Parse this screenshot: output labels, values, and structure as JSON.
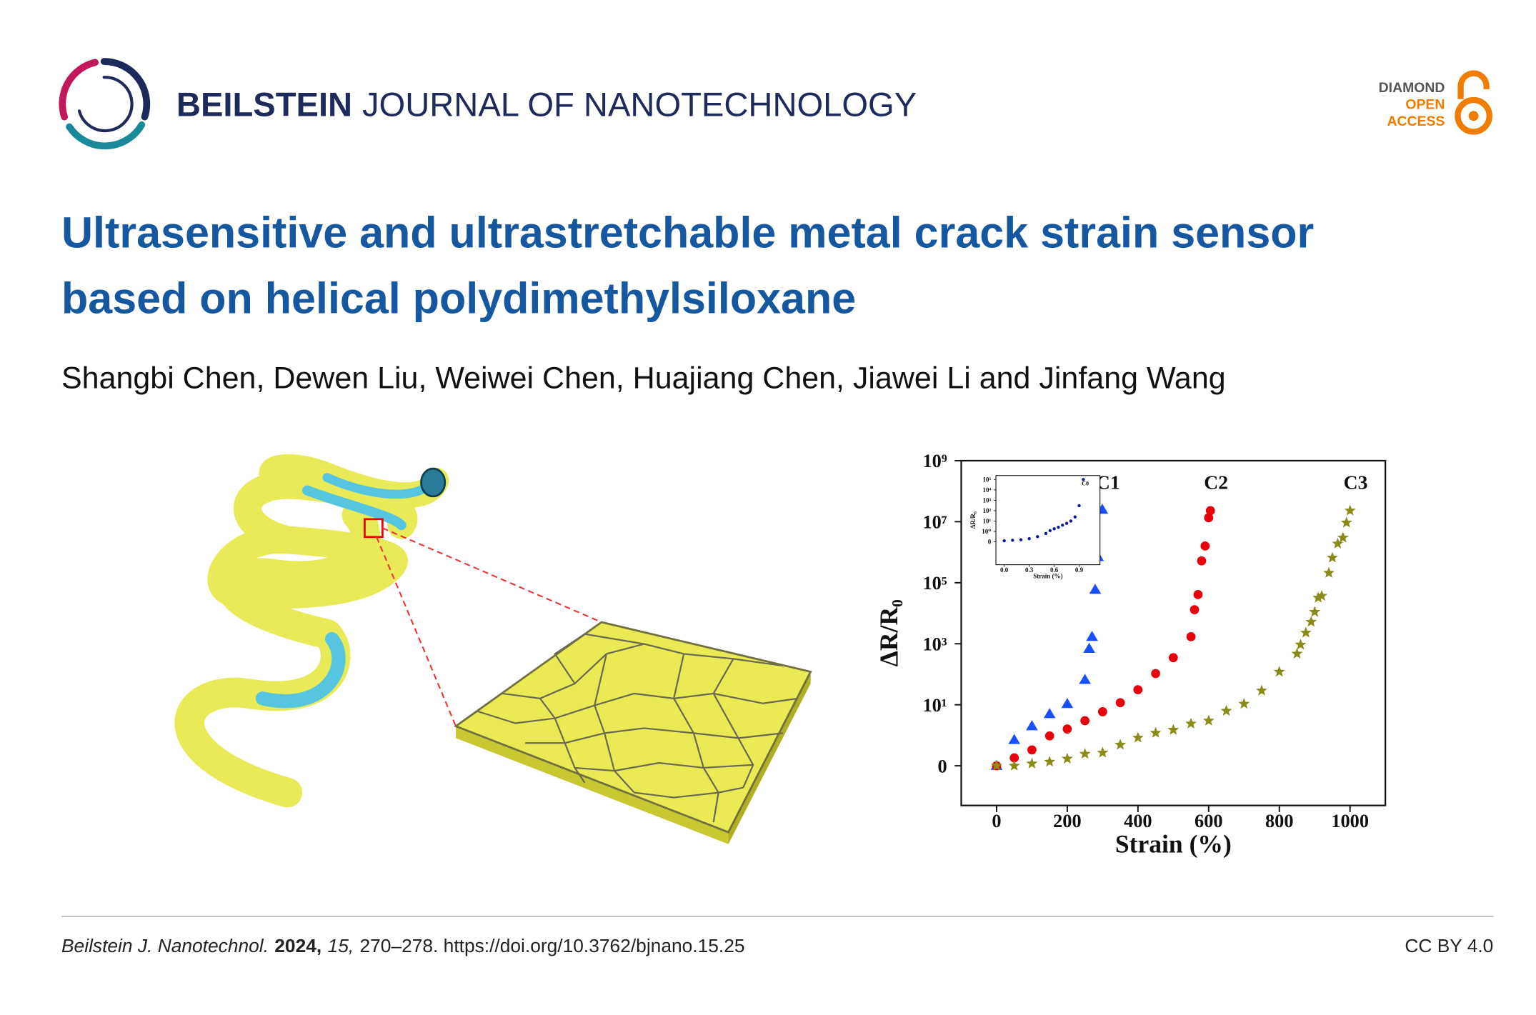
{
  "header": {
    "journal_bold": "BEILSTEIN",
    "journal_rest": "JOURNAL OF NANOTECHNOLOGY",
    "badge": [
      "DIAMOND",
      "OPEN",
      "ACCESS"
    ]
  },
  "title": [
    "Ultrasensitive and ultrastretchable metal crack strain sensor",
    "based on helical polydimethylsiloxane"
  ],
  "authors": "Shangbi Chen, Dewen Liu, Weiwei Chen, Huajiang Chen, Jiawei Li and Jinfang Wang",
  "chart_data": [
    {
      "type": "scatter",
      "x_label": "Strain (%)",
      "y_label": "ΔR/R₀",
      "yscale": "symlog",
      "xlim": [
        -100,
        1100
      ],
      "ylim": [
        -2,
        1000000000
      ],
      "xticks": [
        0,
        200,
        400,
        600,
        800,
        1000
      ],
      "yticks": [
        0,
        {
          "value": 10,
          "label": "10¹"
        },
        {
          "value": 1000,
          "label": "10³"
        },
        {
          "value": 100000,
          "label": "10⁵"
        },
        {
          "value": 10000000,
          "label": "10⁷"
        },
        {
          "value": 1000000000,
          "label": "10⁹"
        }
      ],
      "series": [
        {
          "name": "C1",
          "color": "#1a4fff",
          "marker": "triangle",
          "x": [
            0,
            50,
            100,
            150,
            200,
            250,
            262,
            270,
            279,
            287,
            299
          ],
          "values": [
            0,
            0.85,
            2,
            5,
            10.7,
            66,
            690,
            1700,
            59000,
            700000,
            25000000
          ]
        },
        {
          "name": "C2",
          "color": "#e8000b",
          "marker": "circle",
          "x": [
            0,
            50,
            100,
            150,
            200,
            250,
            300,
            350,
            400,
            450,
            500,
            550,
            560,
            570,
            580,
            590,
            600,
            605
          ],
          "values": [
            0,
            0.26,
            0.52,
            0.98,
            1.6,
            3,
            5.9,
            11.7,
            31,
            105,
            350,
            1700,
            13000,
            41000,
            520000,
            1600000,
            13500000,
            23000000
          ]
        },
        {
          "name": "C3",
          "color": "#8b8b1a",
          "marker": "star",
          "x": [
            0,
            50,
            100,
            150,
            200,
            250,
            300,
            350,
            400,
            450,
            500,
            550,
            600,
            650,
            700,
            750,
            800,
            850,
            860,
            875,
            890,
            900,
            910,
            920,
            940,
            950,
            965,
            980,
            990,
            1000
          ],
          "values": [
            0,
            0,
            0.07,
            0.13,
            0.23,
            0.39,
            0.43,
            0.69,
            0.92,
            1.2,
            1.5,
            2.4,
            3,
            6.3,
            10.7,
            29,
            120,
            470,
            930,
            2300,
            5200,
            11000,
            32000,
            37000,
            210000,
            660000,
            1900000,
            3000000,
            9300000,
            23000000
          ]
        }
      ]
    },
    {
      "type": "scatter",
      "x_label": "Strain (%)",
      "y_label": "ΔR/R₀",
      "yscale": "symlog",
      "xlim": [
        -0.1,
        1.15
      ],
      "ylim": [
        -16,
        240000
      ],
      "xticks": [
        {
          "value": 0,
          "label": "0.0"
        },
        0.3,
        0.6,
        0.9
      ],
      "yticks": [
        0,
        {
          "value": 1,
          "label": "10⁰"
        },
        {
          "value": 10,
          "label": "10¹"
        },
        {
          "value": 100,
          "label": "10²"
        },
        {
          "value": 1000,
          "label": "10³"
        },
        {
          "value": 10000,
          "label": "10⁴"
        },
        {
          "value": 100000,
          "label": "10⁵"
        }
      ],
      "series": [
        {
          "name": "C0",
          "color": "#0a1a9a",
          "marker": "dot",
          "x": [
            0,
            0.1,
            0.2,
            0.3,
            0.4,
            0.5,
            0.55,
            0.6,
            0.65,
            0.7,
            0.75,
            0.8,
            0.85,
            0.9,
            0.95
          ],
          "values": [
            0.1,
            0.15,
            0.2,
            0.3,
            0.5,
            0.8,
            1.2,
            1.8,
            2.5,
            4,
            6,
            10,
            25,
            300,
            100000
          ]
        }
      ]
    }
  ],
  "citation": {
    "journal": "Beilstein J. Nanotechnol.",
    "year": "2024,",
    "volume": "15,",
    "rest": "270–278. https://doi.org/10.3762/bjnano.15.25",
    "license": "CC BY 4.0"
  }
}
